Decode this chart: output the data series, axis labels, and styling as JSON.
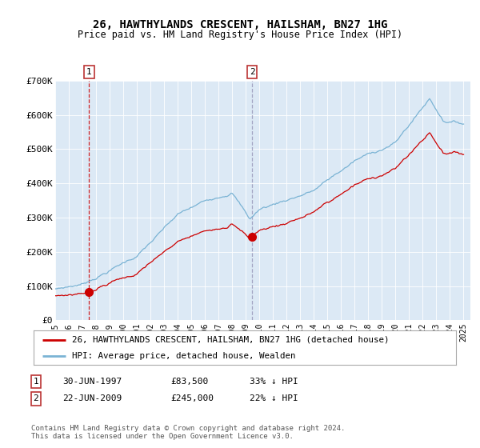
{
  "title_line1": "26, HAWTHYLANDS CRESCENT, HAILSHAM, BN27 1HG",
  "title_line2": "Price paid vs. HM Land Registry's House Price Index (HPI)",
  "bg_color": "#dce9f5",
  "hpi_color": "#7ab3d4",
  "price_color": "#cc0000",
  "vline1_color": "#cc0000",
  "vline2_color": "#9999bb",
  "sale1_date": 1997.49,
  "sale1_price": 83500,
  "sale2_date": 2009.47,
  "sale2_price": 245000,
  "legend_entry1": "26, HAWTHYLANDS CRESCENT, HAILSHAM, BN27 1HG (detached house)",
  "legend_entry2": "HPI: Average price, detached house, Wealden",
  "table_row1": [
    "1",
    "30-JUN-1997",
    "£83,500",
    "33% ↓ HPI"
  ],
  "table_row2": [
    "2",
    "22-JUN-2009",
    "£245,000",
    "22% ↓ HPI"
  ],
  "footnote": "Contains HM Land Registry data © Crown copyright and database right 2024.\nThis data is licensed under the Open Government Licence v3.0.",
  "ylim": [
    0,
    700000
  ],
  "xlim_start": 1995.0,
  "xlim_end": 2025.5,
  "yticks": [
    0,
    100000,
    200000,
    300000,
    400000,
    500000,
    600000,
    700000
  ],
  "ytick_labels": [
    "£0",
    "£100K",
    "£200K",
    "£300K",
    "£400K",
    "£500K",
    "£600K",
    "£700K"
  ],
  "xticks": [
    1995,
    1996,
    1997,
    1998,
    1999,
    2000,
    2001,
    2002,
    2003,
    2004,
    2005,
    2006,
    2007,
    2008,
    2009,
    2010,
    2011,
    2012,
    2013,
    2014,
    2015,
    2016,
    2017,
    2018,
    2019,
    2020,
    2021,
    2022,
    2023,
    2024,
    2025
  ]
}
